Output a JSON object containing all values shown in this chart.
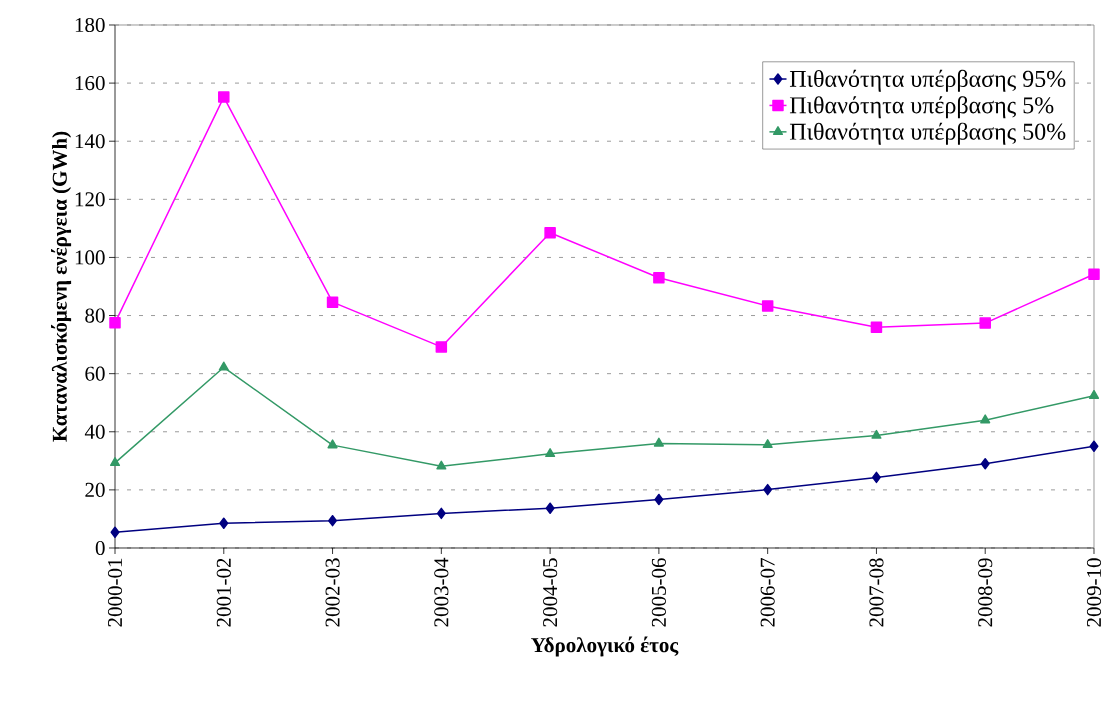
{
  "chart_data": {
    "type": "line",
    "xlabel": "Υδρολογικό έτος",
    "ylabel": "Καταναλισκόμενη ενέργεια (GWh)",
    "categories": [
      "2000-01",
      "2001-02",
      "2002-03",
      "2003-04",
      "2004-05",
      "2005-06",
      "2006-07",
      "2007-08",
      "2008-09",
      "2009-10"
    ],
    "series": [
      {
        "name": "Πιθανότητα υπέρβασης 95%",
        "color": "#000080",
        "marker": "diamond",
        "values": [
          5.4,
          8.5,
          9.4,
          11.9,
          13.7,
          16.7,
          20.1,
          24.3,
          29,
          35
        ]
      },
      {
        "name": "Πιθανότητα υπέρβασης 5%",
        "color": "#ff00ff",
        "marker": "square",
        "values": [
          77.5,
          155.2,
          84.6,
          69.2,
          108.5,
          93,
          83.3,
          76,
          77.4,
          94.2
        ]
      },
      {
        "name": "Πιθανότητα υπέρβασης 50%",
        "color": "#339966",
        "marker": "triangle",
        "values": [
          29.3,
          62.2,
          35.4,
          28.1,
          32.4,
          36,
          35.5,
          38.7,
          44,
          52.4
        ]
      }
    ],
    "ylim": [
      0,
      180
    ],
    "yticks": [
      0,
      20,
      40,
      60,
      80,
      100,
      120,
      140,
      160,
      180
    ],
    "grid": "y",
    "legend": "top right",
    "line_style": "solid"
  }
}
